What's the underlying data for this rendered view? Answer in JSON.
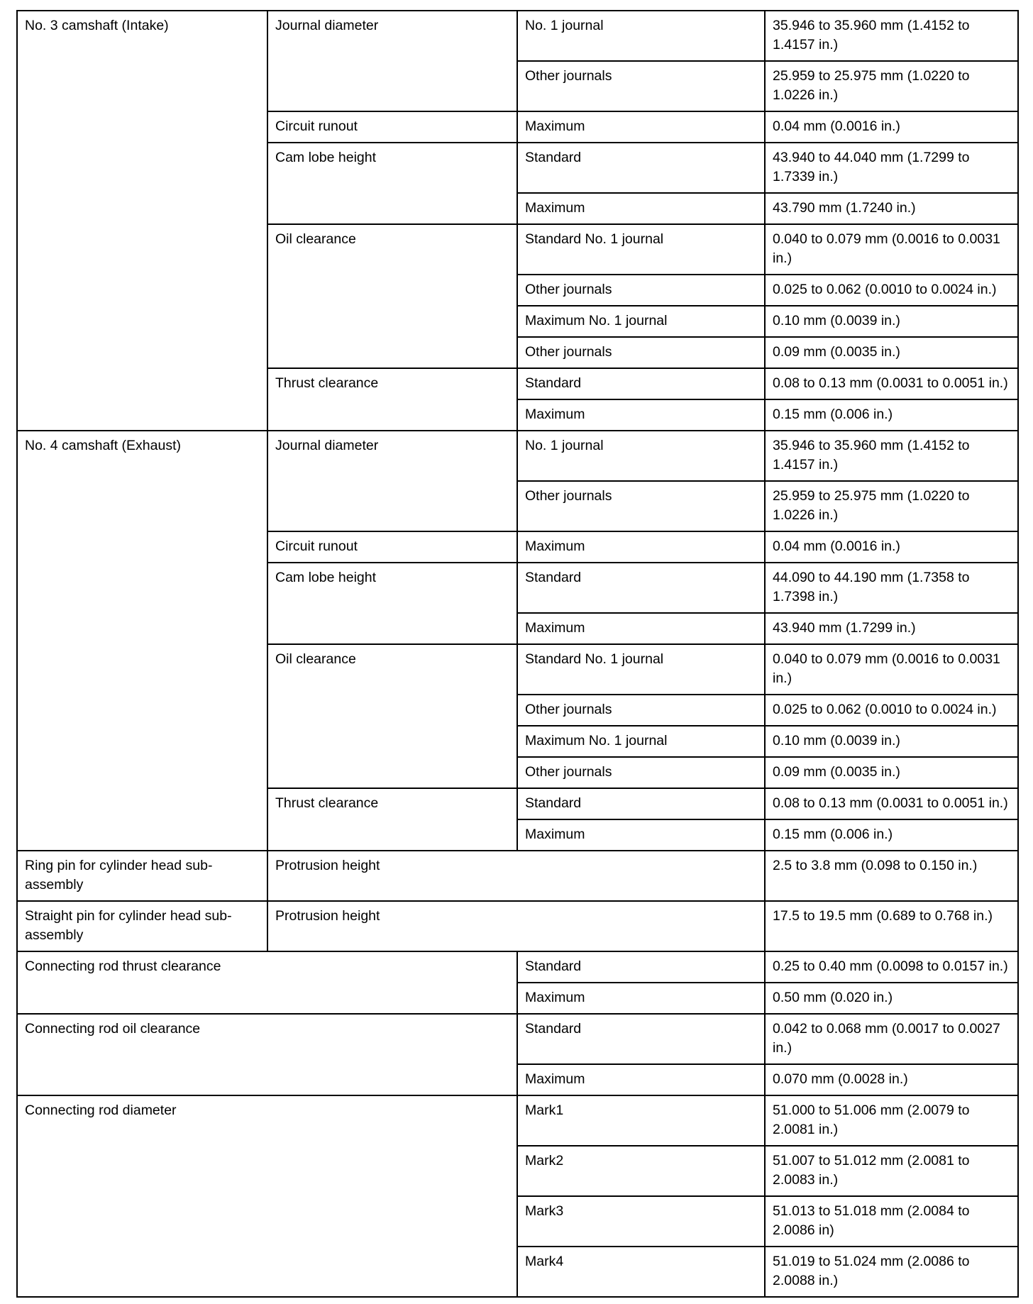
{
  "specs": [
    {
      "component": "No. 3 camshaft (Intake)",
      "items": [
        {
          "parameter": "Journal diameter",
          "conditions": [
            {
              "condition": "No. 1 journal",
              "value": "35.946 to 35.960 mm (1.4152 to 1.4157 in.)"
            },
            {
              "condition": "Other journals",
              "value": "25.959 to 25.975 mm (1.0220 to 1.0226 in.)"
            }
          ]
        },
        {
          "parameter": "Circuit runout",
          "conditions": [
            {
              "condition": "Maximum",
              "value": "0.04 mm (0.0016 in.)"
            }
          ]
        },
        {
          "parameter": "Cam lobe height",
          "conditions": [
            {
              "condition": "Standard",
              "value": "43.940 to 44.040 mm (1.7299 to 1.7339 in.)"
            },
            {
              "condition": "Maximum",
              "value": "43.790 mm (1.7240 in.)"
            }
          ]
        },
        {
          "parameter": "Oil clearance",
          "conditions": [
            {
              "condition": "Standard No. 1 journal",
              "value": "0.040 to 0.079 mm (0.0016 to 0.0031 in.)"
            },
            {
              "condition": "Other journals",
              "value": "0.025 to 0.062 (0.0010 to 0.0024 in.)"
            },
            {
              "condition": "Maximum No. 1 journal",
              "value": "0.10 mm (0.0039 in.)"
            },
            {
              "condition": "Other journals",
              "value": "0.09 mm (0.0035 in.)"
            }
          ]
        },
        {
          "parameter": "Thrust clearance",
          "conditions": [
            {
              "condition": "Standard",
              "value": "0.08 to 0.13 mm (0.0031 to 0.0051 in.)"
            },
            {
              "condition": "Maximum",
              "value": "0.15 mm (0.006 in.)"
            }
          ]
        }
      ]
    },
    {
      "component": "No. 4 camshaft (Exhaust)",
      "items": [
        {
          "parameter": "Journal diameter",
          "conditions": [
            {
              "condition": "No. 1 journal",
              "value": "35.946 to 35.960 mm (1.4152 to 1.4157 in.)"
            },
            {
              "condition": "Other journals",
              "value": "25.959 to 25.975 mm (1.0220 to 1.0226 in.)"
            }
          ]
        },
        {
          "parameter": "Circuit runout",
          "conditions": [
            {
              "condition": "Maximum",
              "value": "0.04 mm (0.0016 in.)"
            }
          ]
        },
        {
          "parameter": "Cam lobe height",
          "conditions": [
            {
              "condition": "Standard",
              "value": "44.090 to 44.190 mm (1.7358 to 1.7398 in.)"
            },
            {
              "condition": "Maximum",
              "value": "43.940 mm (1.7299 in.)"
            }
          ]
        },
        {
          "parameter": "Oil clearance",
          "conditions": [
            {
              "condition": "Standard No. 1 journal",
              "value": "0.040 to 0.079 mm (0.0016 to 0.0031 in.)"
            },
            {
              "condition": "Other journals",
              "value": "0.025 to 0.062 (0.0010 to 0.0024 in.)"
            },
            {
              "condition": "Maximum No. 1 journal",
              "value": "0.10 mm (0.0039 in.)"
            },
            {
              "condition": "Other journals",
              "value": "0.09 mm (0.0035 in.)"
            }
          ]
        },
        {
          "parameter": "Thrust clearance",
          "conditions": [
            {
              "condition": "Standard",
              "value": "0.08 to 0.13 mm (0.0031 to 0.0051 in.)"
            },
            {
              "condition": "Maximum",
              "value": "0.15 mm (0.006 in.)"
            }
          ]
        }
      ]
    },
    {
      "component": "Ring pin for cylinder head sub-assembly",
      "items": [
        {
          "parameter": "Protrusion height",
          "value": "2.5 to 3.8 mm (0.098 to 0.150 in.)"
        }
      ]
    },
    {
      "component": "Straight pin for cylinder head sub-assembly",
      "items": [
        {
          "parameter": "Protrusion height",
          "value": "17.5 to 19.5 mm (0.689 to 0.768 in.)"
        }
      ]
    },
    {
      "component": "Connecting rod thrust clearance",
      "conditions": [
        {
          "condition": "Standard",
          "value": "0.25 to 0.40 mm (0.0098 to 0.0157 in.)"
        },
        {
          "condition": "Maximum",
          "value": "0.50 mm (0.020 in.)"
        }
      ]
    },
    {
      "component": "Connecting rod oil clearance",
      "conditions": [
        {
          "condition": "Standard",
          "value": "0.042 to 0.068 mm (0.0017 to 0.0027 in.)"
        },
        {
          "condition": "Maximum",
          "value": "0.070 mm (0.0028 in.)"
        }
      ]
    },
    {
      "component": "Connecting rod diameter",
      "conditions": [
        {
          "condition": "Mark1",
          "value": "51.000 to 51.006 mm (2.0079 to 2.0081 in.)"
        },
        {
          "condition": "Mark2",
          "value": "51.007 to 51.012 mm (2.0081 to 2.0083 in.)"
        },
        {
          "condition": "Mark3",
          "value": "51.013 to 51.018 mm (2.0084 to 2.0086 in)"
        },
        {
          "condition": "Mark4",
          "value": "51.019 to 51.024 mm (2.0086 to 2.0088 in.)"
        }
      ]
    }
  ]
}
